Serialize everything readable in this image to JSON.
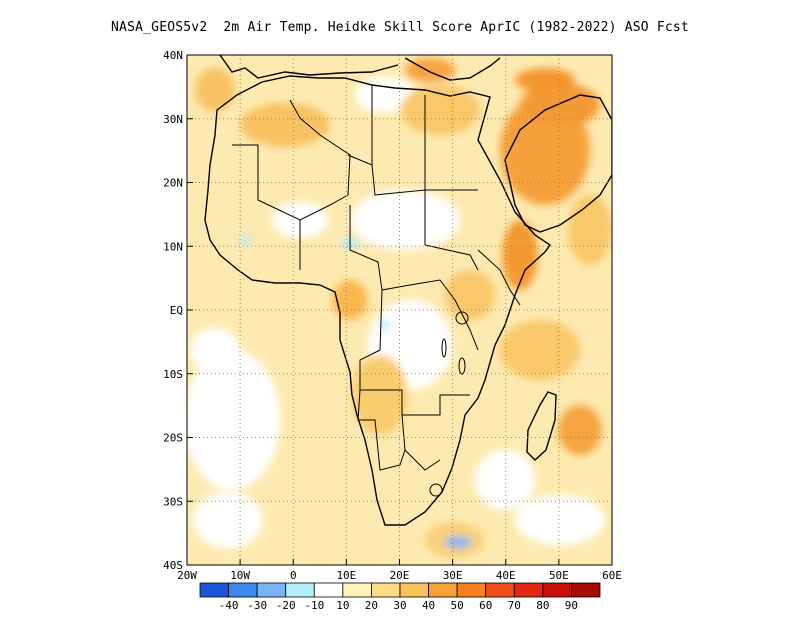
{
  "title": "NASA_GEOS5v2  2m Air Temp. Heidke Skill Score AprIC (1982-2022) ASO Fcst",
  "axes": {
    "lat_ticks": [
      "40N",
      "30N",
      "20N",
      "10N",
      "EQ",
      "10S",
      "20S",
      "30S",
      "40S"
    ],
    "lon_ticks": [
      "20W",
      "10W",
      "0",
      "10E",
      "20E",
      "30E",
      "40E",
      "50E",
      "60E"
    ],
    "grid": "dotted"
  },
  "colorbar": {
    "colors": [
      "#1a55d9",
      "#3d87ef",
      "#79b5f4",
      "#b2eef8",
      "#ffffff",
      "#fff3b8",
      "#fcdc86",
      "#fbc25a",
      "#f8a232",
      "#f57f21",
      "#f05016",
      "#e2280e",
      "#c60f09",
      "#a50a05"
    ],
    "labels": [
      "-40",
      "-30",
      "-20",
      "-10",
      "10",
      "20",
      "30",
      "40",
      "50",
      "60",
      "70",
      "80",
      "90"
    ]
  }
}
